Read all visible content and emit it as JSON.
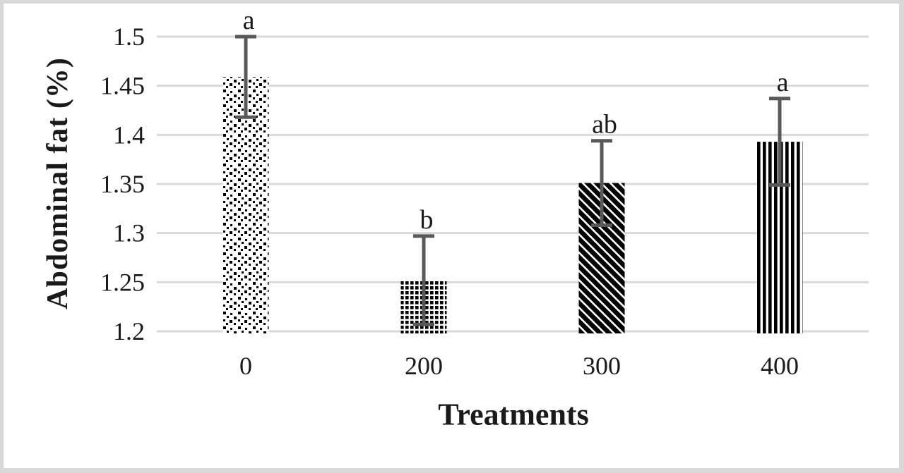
{
  "frame": {
    "background": "#ffffff",
    "border_color": "#d9d9d9"
  },
  "chart_data": {
    "type": "bar",
    "title": "",
    "xlabel": "Treatments",
    "ylabel": "Abdominal fat (%)",
    "categories": [
      "0",
      "200",
      "300",
      "400"
    ],
    "values": [
      1.459,
      1.252,
      1.351,
      1.393
    ],
    "error_bars": [
      0.041,
      0.045,
      0.043,
      0.044
    ],
    "sig_letters": [
      "a",
      "b",
      "ab",
      "a"
    ],
    "bar_patterns": [
      "dots",
      "small-grid",
      "diagonal-stripes-down",
      "vertical-stripes"
    ],
    "ylim": [
      1.2,
      1.5
    ],
    "ytick_step": 0.05,
    "yticks": [
      "1.2",
      "1.25",
      "1.3",
      "1.35",
      "1.4",
      "1.45",
      "1.5"
    ],
    "grid": "horizontal",
    "gridline_color": "#d9d9d9",
    "error_bar_color": "#595959",
    "pattern_color": "#000000",
    "legend": "none"
  }
}
